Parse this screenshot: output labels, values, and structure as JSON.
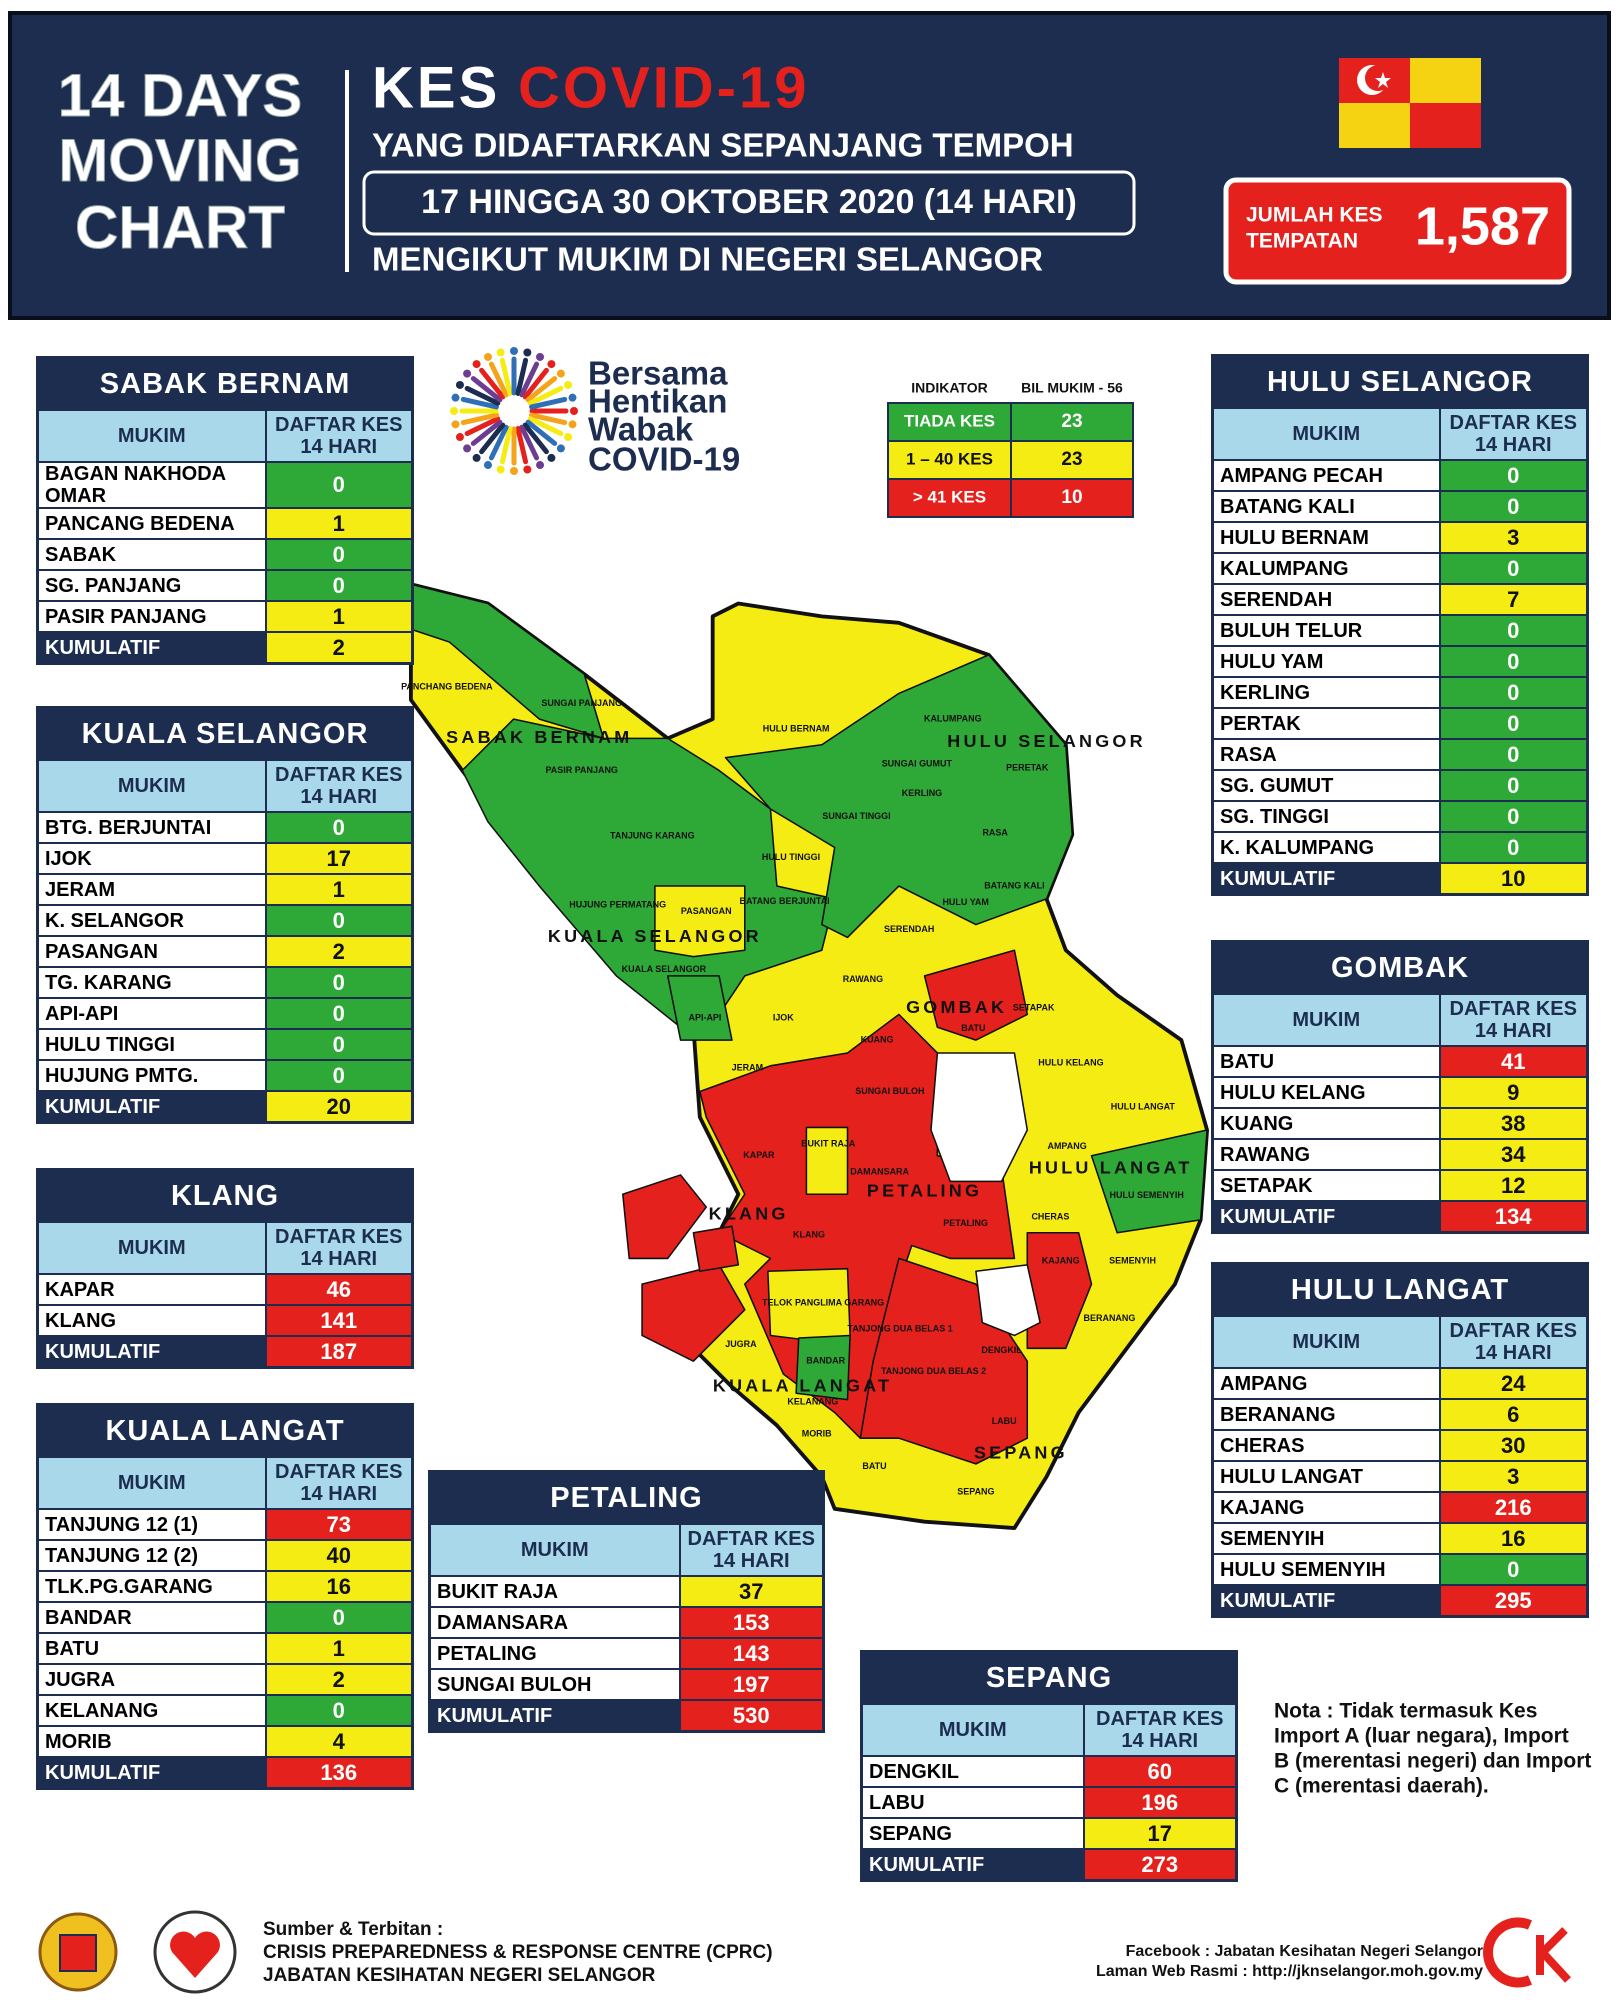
{
  "header": {
    "chart_title": [
      "14 DAYS",
      "MOVING",
      "CHART"
    ],
    "kes": "KES",
    "covid": "COVID-19",
    "line1": "YANG DIDAFTARKAN SEPANJANG TEMPOH",
    "period": "17 HINGGA 30 OKTOBER 2020 (14 HARI)",
    "line3": "MENGIKUT MUKIM DI NEGERI SELANGOR",
    "total_label": [
      "JUMLAH KES",
      "TEMPATAN"
    ],
    "total": "1,587"
  },
  "campaign": [
    "Bersama",
    "Hentikan",
    "Wabak",
    "COVID-19"
  ],
  "legend": {
    "headers": [
      "INDIKATOR",
      "BIL MUKIM - 56"
    ],
    "rows": [
      {
        "label": "TIADA KES",
        "count": 23,
        "color": "#2ea836"
      },
      {
        "label": "1 – 40 KES",
        "count": 23,
        "color": "#f5ec13"
      },
      {
        "label": "> 41 KES",
        "count": 10,
        "color": "#e4211c"
      }
    ]
  },
  "tables": [
    {
      "title": "SABAK BERNAM",
      "columns": [
        "MUKIM",
        "DAFTAR KES 14 HARI"
      ],
      "rows": [
        {
          "mukim": "BAGAN NAKHODA OMAR",
          "cases": 0,
          "color": "#2ea836"
        },
        {
          "mukim": "PANCANG BEDENA",
          "cases": 1,
          "color": "#f5ec13"
        },
        {
          "mukim": "SABAK",
          "cases": 0,
          "color": "#2ea836"
        },
        {
          "mukim": "SG. PANJANG",
          "cases": 0,
          "color": "#2ea836"
        },
        {
          "mukim": "PASIR PANJANG",
          "cases": 1,
          "color": "#f5ec13"
        }
      ],
      "total": {
        "label": "KUMULATIF",
        "cases": 2,
        "color": "#f5ec13"
      }
    },
    {
      "title": "KUALA SELANGOR",
      "columns": [
        "MUKIM",
        "DAFTAR KES 14 HARI"
      ],
      "rows": [
        {
          "mukim": "BTG. BERJUNTAI",
          "cases": 0,
          "color": "#2ea836"
        },
        {
          "mukim": "IJOK",
          "cases": 17,
          "color": "#f5ec13"
        },
        {
          "mukim": "JERAM",
          "cases": 1,
          "color": "#f5ec13"
        },
        {
          "mukim": "K. SELANGOR",
          "cases": 0,
          "color": "#2ea836"
        },
        {
          "mukim": "PASANGAN",
          "cases": 2,
          "color": "#f5ec13"
        },
        {
          "mukim": "TG. KARANG",
          "cases": 0,
          "color": "#2ea836"
        },
        {
          "mukim": "API-API",
          "cases": 0,
          "color": "#2ea836"
        },
        {
          "mukim": "HULU TINGGI",
          "cases": 0,
          "color": "#2ea836"
        },
        {
          "mukim": "HUJUNG PMTG.",
          "cases": 0,
          "color": "#2ea836"
        }
      ],
      "total": {
        "label": "KUMULATIF",
        "cases": 20,
        "color": "#f5ec13"
      }
    },
    {
      "title": "KLANG",
      "columns": [
        "MUKIM",
        "DAFTAR KES 14 HARI"
      ],
      "rows": [
        {
          "mukim": "KAPAR",
          "cases": 46,
          "color": "#e4211c"
        },
        {
          "mukim": "KLANG",
          "cases": 141,
          "color": "#e4211c"
        }
      ],
      "total": {
        "label": "KUMULATIF",
        "cases": 187,
        "color": "#e4211c"
      }
    },
    {
      "title": "KUALA LANGAT",
      "columns": [
        "MUKIM",
        "DAFTAR KES 14 HARI"
      ],
      "rows": [
        {
          "mukim": "TANJUNG 12 (1)",
          "cases": 73,
          "color": "#e4211c"
        },
        {
          "mukim": "TANJUNG 12 (2)",
          "cases": 40,
          "color": "#f5ec13"
        },
        {
          "mukim": "TLK.PG.GARANG",
          "cases": 16,
          "color": "#f5ec13"
        },
        {
          "mukim": "BANDAR",
          "cases": 0,
          "color": "#2ea836"
        },
        {
          "mukim": "BATU",
          "cases": 1,
          "color": "#f5ec13"
        },
        {
          "mukim": "JUGRA",
          "cases": 2,
          "color": "#f5ec13"
        },
        {
          "mukim": "KELANANG",
          "cases": 0,
          "color": "#2ea836"
        },
        {
          "mukim": "MORIB",
          "cases": 4,
          "color": "#f5ec13"
        }
      ],
      "total": {
        "label": "KUMULATIF",
        "cases": 136,
        "color": "#e4211c"
      }
    },
    {
      "title": "PETALING",
      "columns": [
        "MUKIM",
        "DAFTAR KES 14 HARI"
      ],
      "rows": [
        {
          "mukim": "BUKIT RAJA",
          "cases": 37,
          "color": "#f5ec13"
        },
        {
          "mukim": "DAMANSARA",
          "cases": 153,
          "color": "#e4211c"
        },
        {
          "mukim": "PETALING",
          "cases": 143,
          "color": "#e4211c"
        },
        {
          "mukim": "SUNGAI BULOH",
          "cases": 197,
          "color": "#e4211c"
        }
      ],
      "total": {
        "label": "KUMULATIF",
        "cases": 530,
        "color": "#e4211c"
      }
    },
    {
      "title": "SEPANG",
      "columns": [
        "MUKIM",
        "DAFTAR KES 14 HARI"
      ],
      "rows": [
        {
          "mukim": "DENGKIL",
          "cases": 60,
          "color": "#e4211c"
        },
        {
          "mukim": "LABU",
          "cases": 196,
          "color": "#e4211c"
        },
        {
          "mukim": "SEPANG",
          "cases": 17,
          "color": "#f5ec13"
        }
      ],
      "total": {
        "label": "KUMULATIF",
        "cases": 273,
        "color": "#e4211c"
      }
    },
    {
      "title": "HULU SELANGOR",
      "columns": [
        "MUKIM",
        "DAFTAR KES 14 HARI"
      ],
      "rows": [
        {
          "mukim": "AMPANG PECAH",
          "cases": 0,
          "color": "#2ea836"
        },
        {
          "mukim": "BATANG KALI",
          "cases": 0,
          "color": "#2ea836"
        },
        {
          "mukim": "HULU BERNAM",
          "cases": 3,
          "color": "#f5ec13"
        },
        {
          "mukim": "KALUMPANG",
          "cases": 0,
          "color": "#2ea836"
        },
        {
          "mukim": "SERENDAH",
          "cases": 7,
          "color": "#f5ec13"
        },
        {
          "mukim": "BULUH TELUR",
          "cases": 0,
          "color": "#2ea836"
        },
        {
          "mukim": "HULU YAM",
          "cases": 0,
          "color": "#2ea836"
        },
        {
          "mukim": "KERLING",
          "cases": 0,
          "color": "#2ea836"
        },
        {
          "mukim": "PERTAK",
          "cases": 0,
          "color": "#2ea836"
        },
        {
          "mukim": "RASA",
          "cases": 0,
          "color": "#2ea836"
        },
        {
          "mukim": "SG. GUMUT",
          "cases": 0,
          "color": "#2ea836"
        },
        {
          "mukim": "SG. TINGGI",
          "cases": 0,
          "color": "#2ea836"
        },
        {
          "mukim": "K. KALUMPANG",
          "cases": 0,
          "color": "#2ea836"
        }
      ],
      "total": {
        "label": "KUMULATIF",
        "cases": 10,
        "color": "#f5ec13"
      }
    },
    {
      "title": "GOMBAK",
      "columns": [
        "MUKIM",
        "DAFTAR KES 14 HARI"
      ],
      "rows": [
        {
          "mukim": "BATU",
          "cases": 41,
          "color": "#e4211c"
        },
        {
          "mukim": "HULU KELANG",
          "cases": 9,
          "color": "#f5ec13"
        },
        {
          "mukim": "KUANG",
          "cases": 38,
          "color": "#f5ec13"
        },
        {
          "mukim": "RAWANG",
          "cases": 34,
          "color": "#f5ec13"
        },
        {
          "mukim": "SETAPAK",
          "cases": 12,
          "color": "#f5ec13"
        }
      ],
      "total": {
        "label": "KUMULATIF",
        "cases": 134,
        "color": "#e4211c"
      }
    },
    {
      "title": "HULU LANGAT",
      "columns": [
        "MUKIM",
        "DAFTAR KES 14 HARI"
      ],
      "rows": [
        {
          "mukim": "AMPANG",
          "cases": 24,
          "color": "#f5ec13"
        },
        {
          "mukim": "BERANANG",
          "cases": 6,
          "color": "#f5ec13"
        },
        {
          "mukim": "CHERAS",
          "cases": 30,
          "color": "#f5ec13"
        },
        {
          "mukim": "HULU LANGAT",
          "cases": 3,
          "color": "#f5ec13"
        },
        {
          "mukim": "KAJANG",
          "cases": 216,
          "color": "#e4211c"
        },
        {
          "mukim": "SEMENYIH",
          "cases": 16,
          "color": "#f5ec13"
        },
        {
          "mukim": "HULU SEMENYIH",
          "cases": 0,
          "color": "#2ea836"
        }
      ],
      "total": {
        "label": "KUMULATIF",
        "cases": 295,
        "color": "#e4211c"
      }
    }
  ],
  "map": {
    "districts": [
      "SABAK BERNAM",
      "HULU SELANGOR",
      "KUALA SELANGOR",
      "GOMBAK",
      "HULU LANGAT",
      "PETALING",
      "KLANG",
      "KUALA LANGAT",
      "SEPANG"
    ],
    "mukims": [
      "PANCHANG BEDENA",
      "SUNGAI PANJANG",
      "PASIR PANJANG",
      "HULU BERNAM",
      "KALUMPANG",
      "SUNGAI GUMUT",
      "PERETAK",
      "KERLING",
      "SUNGAI TINGGI",
      "TANJUNG KARANG",
      "HULU TINGGI",
      "RASA",
      "BATANG BERJUNTAI",
      "BATANG KALI",
      "HUJUNG PERMATANG",
      "PASANGAN",
      "HULU YAM",
      "SERENDAH",
      "KUALA SELANGOR",
      "RAWANG",
      "API-API",
      "IJOK",
      "SETAPAK",
      "BATU",
      "KUANG",
      "HULU KELANG",
      "JERAM",
      "SUNGAI BULOH",
      "HULU LANGAT",
      "KAPAR",
      "BUKIT RAJA",
      "DAMANSARA",
      "AMPANG",
      "HULU SEMENYIH",
      "CHERAS",
      "PETALING",
      "KLANG",
      "KAJANG",
      "SEMENYIH",
      "TELOK PANGLIMA GARANG",
      "TANJONG DUA BELAS 1",
      "JUGRA",
      "BANDAR",
      "TANJONG DUA BELAS 2",
      "DENGKIL",
      "KELANANG",
      "BERANANG",
      "MORIB",
      "LABU",
      "BATU",
      "SEPANG"
    ]
  },
  "note": [
    "Nota : Tidak termasuk Kes",
    "Import A (luar negara), Import",
    "B (merentasi negeri) dan Import",
    "C (merentasi daerah)."
  ],
  "footer": {
    "source": [
      "Sumber & Terbitan :",
      "CRISIS PREPAREDNESS & RESPONSE CENTRE (CPRC)",
      "JABATAN KESIHATAN NEGERI SELANGOR"
    ],
    "links": [
      "Facebook : Jabatan Kesihatan Negeri Selangor",
      "Laman Web Rasmi : http://jknselangor.moh.gov.my"
    ]
  }
}
